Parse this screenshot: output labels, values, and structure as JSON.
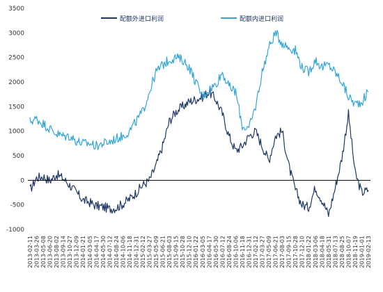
{
  "chart_data": {
    "type": "line",
    "title": "",
    "xlabel": "",
    "ylabel": "",
    "ylim": [
      -1000,
      3500
    ],
    "yticks": [
      -1000,
      -500,
      0,
      500,
      1000,
      1500,
      2000,
      2500,
      3000,
      3500
    ],
    "ytick_labels": [
      "-1000",
      "-500",
      "0",
      "500",
      "1000",
      "1500",
      "2000",
      "2500",
      "3000",
      "3500"
    ],
    "grid": false,
    "legend": "top",
    "x_tick_labels": [
      "2013-02-11",
      "2013-03-26",
      "2013-05-08",
      "2013-06-20",
      "2013-08-02",
      "2013-09-14",
      "2013-10-27",
      "2013-12-09",
      "2014-01-21",
      "2014-03-05",
      "2014-04-17",
      "2014-05-30",
      "2014-07-12",
      "2014-08-24",
      "2014-10-06",
      "2014-11-18",
      "2014-12-31",
      "2015-02-12",
      "2015-03-27",
      "2015-05-09",
      "2015-06-21",
      "2015-08-03",
      "2015-09-15",
      "2015-10-28",
      "2015-12-10",
      "2016-01-22",
      "2016-03-05",
      "2016-04-17",
      "2016-05-30",
      "2016-07-12",
      "2016-08-24",
      "2016-10-06",
      "2016-11-18",
      "2016-12-31",
      "2017-02-12",
      "2017-03-27",
      "2017-05-09",
      "2017-06-21",
      "2017-08-03",
      "2017-09-15",
      "2017-10-28",
      "2017-12-10",
      "2018-01-22",
      "2018-03-06",
      "2018-04-18",
      "2018-05-31",
      "2018-07-13",
      "2018-08-25",
      "2018-10-07",
      "2018-11-19",
      "2019-01-01",
      "2019-02-13"
    ],
    "series": [
      {
        "name": "配额外进口利润",
        "color": "#1f3864",
        "values": [
          -200,
          50,
          80,
          -10,
          120,
          40,
          -100,
          -250,
          -400,
          -450,
          -520,
          -540,
          -580,
          -560,
          -480,
          -380,
          -250,
          -100,
          0,
          300,
          700,
          1200,
          1400,
          1500,
          1600,
          1650,
          1700,
          1800,
          1650,
          1350,
          900,
          600,
          700,
          900,
          1000,
          700,
          400,
          900,
          1000,
          300,
          -200,
          -500,
          -550,
          -150,
          -400,
          -700,
          -150,
          450,
          1350,
          150,
          -250,
          -200
        ]
      },
      {
        "name": "配额内进口利润",
        "color": "#33a6d6",
        "values": [
          1200,
          1250,
          1150,
          1050,
          950,
          900,
          900,
          800,
          750,
          750,
          700,
          750,
          780,
          850,
          900,
          1000,
          1200,
          1400,
          1800,
          2200,
          2350,
          2450,
          2500,
          2450,
          2300,
          2000,
          1700,
          1850,
          1950,
          2200,
          1900,
          1800,
          1100,
          1050,
          1500,
          2200,
          2700,
          3000,
          2800,
          2700,
          2650,
          2300,
          2200,
          2450,
          2300,
          2350,
          2200,
          2000,
          1700,
          1550,
          1600,
          1800
        ]
      }
    ]
  }
}
